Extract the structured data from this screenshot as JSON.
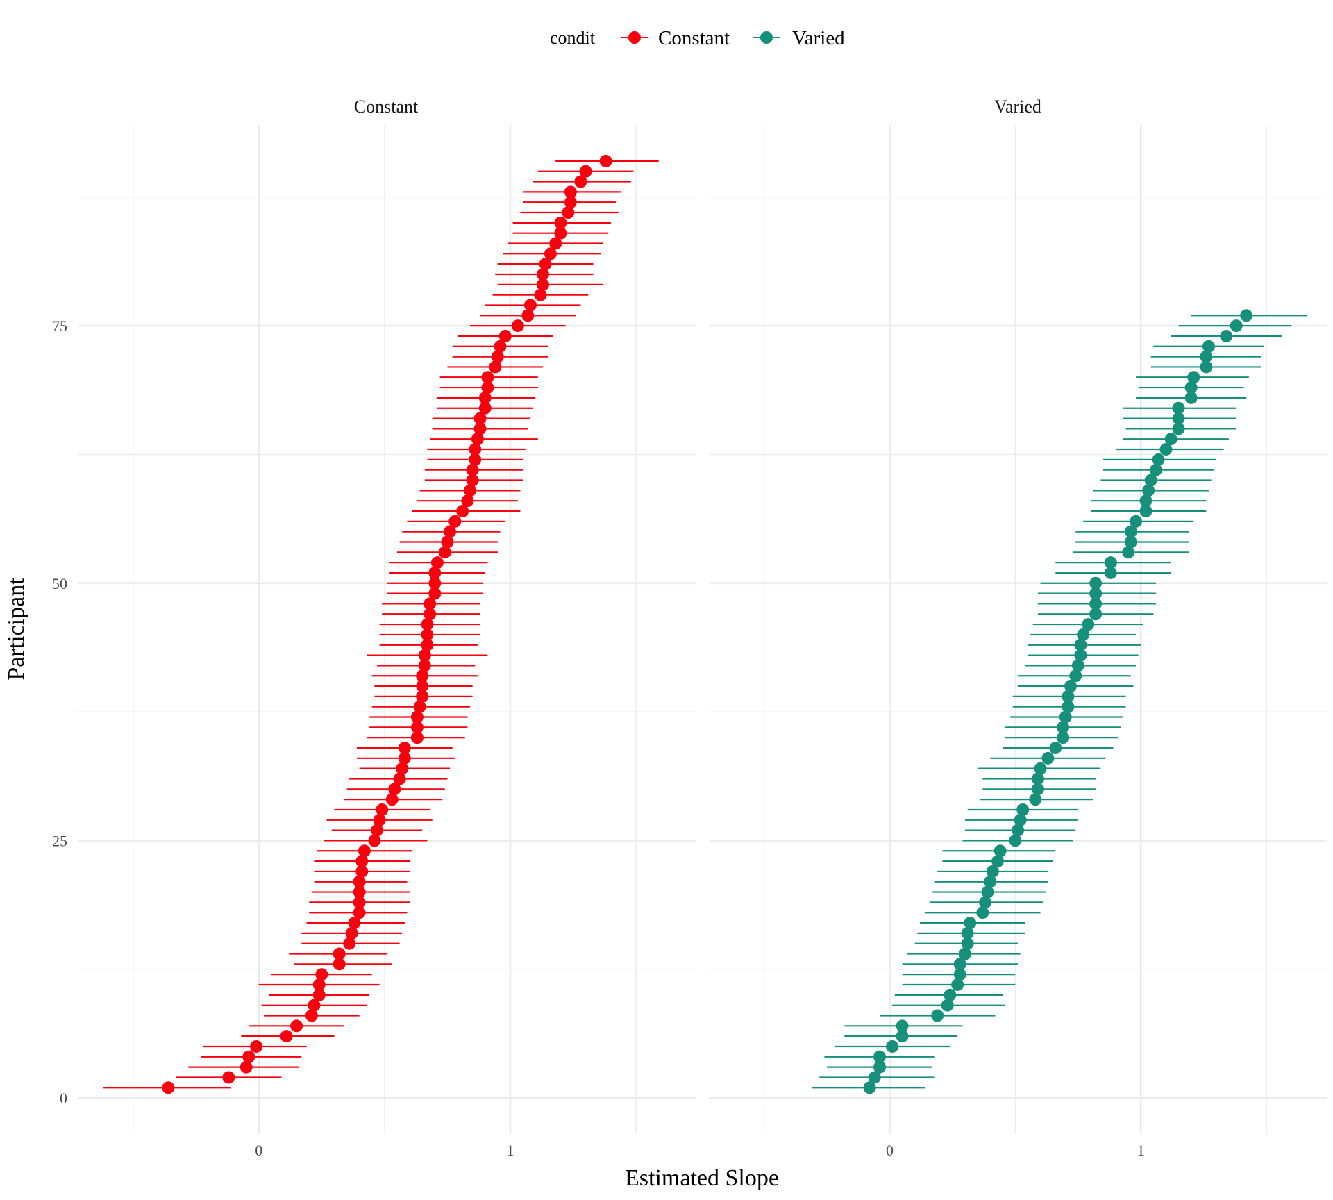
{
  "chart_data": {
    "type": "scatter",
    "title": "",
    "xlabel": "Estimated Slope",
    "ylabel": "Participant",
    "legend": {
      "title": "condit",
      "position": "top",
      "entries": [
        "Constant",
        "Varied"
      ]
    },
    "colors": {
      "Constant": "#f8000d",
      "Varied": "#16907a",
      "grid": "#ebebeb"
    },
    "xlim": [
      -0.72,
      1.74
    ],
    "ylim": [
      -3.5,
      94.5
    ],
    "x_ticks": [
      0,
      1
    ],
    "x_tick_labels": [
      "0",
      "1"
    ],
    "y_ticks": [
      0,
      25,
      50,
      75
    ],
    "y_tick_labels": [
      "0",
      "25",
      "50",
      "75"
    ],
    "grid": true,
    "panels": [
      {
        "name": "Constant",
        "series": [
          {
            "name": "Constant",
            "y": [
              1,
              2,
              3,
              4,
              5,
              6,
              7,
              8,
              9,
              10,
              11,
              12,
              13,
              14,
              15,
              16,
              17,
              18,
              19,
              20,
              21,
              22,
              23,
              24,
              25,
              26,
              27,
              28,
              29,
              30,
              31,
              32,
              33,
              34,
              35,
              36,
              37,
              38,
              39,
              40,
              41,
              42,
              43,
              44,
              45,
              46,
              47,
              48,
              49,
              50,
              51,
              52,
              53,
              54,
              55,
              56,
              57,
              58,
              59,
              60,
              61,
              62,
              63,
              64,
              65,
              66,
              67,
              68,
              69,
              70,
              71,
              72,
              73,
              74,
              75,
              76,
              77,
              78,
              79,
              80,
              81,
              82,
              83,
              84,
              85,
              86,
              87,
              88,
              89,
              90,
              91
            ],
            "x": [
              -0.36,
              -0.12,
              -0.05,
              -0.04,
              -0.01,
              0.11,
              0.15,
              0.21,
              0.22,
              0.24,
              0.24,
              0.25,
              0.32,
              0.32,
              0.36,
              0.37,
              0.38,
              0.4,
              0.4,
              0.4,
              0.4,
              0.41,
              0.41,
              0.42,
              0.46,
              0.47,
              0.48,
              0.49,
              0.53,
              0.54,
              0.56,
              0.57,
              0.58,
              0.58,
              0.63,
              0.63,
              0.63,
              0.64,
              0.65,
              0.65,
              0.65,
              0.66,
              0.66,
              0.67,
              0.67,
              0.67,
              0.68,
              0.68,
              0.7,
              0.7,
              0.7,
              0.71,
              0.74,
              0.75,
              0.76,
              0.78,
              0.81,
              0.83,
              0.84,
              0.85,
              0.85,
              0.86,
              0.86,
              0.87,
              0.88,
              0.88,
              0.9,
              0.9,
              0.91,
              0.91,
              0.94,
              0.95,
              0.96,
              0.98,
              1.03,
              1.07,
              1.08,
              1.12,
              1.13,
              1.13,
              1.14,
              1.16,
              1.18,
              1.2,
              1.2,
              1.23,
              1.24,
              1.24,
              1.28,
              1.3,
              1.38
            ],
            "lower": [
              -0.62,
              -0.33,
              -0.28,
              -0.23,
              -0.22,
              -0.07,
              -0.04,
              0.02,
              0.01,
              0.04,
              0.0,
              0.05,
              0.14,
              0.12,
              0.17,
              0.17,
              0.19,
              0.2,
              0.2,
              0.21,
              0.22,
              0.22,
              0.22,
              0.23,
              0.26,
              0.29,
              0.27,
              0.3,
              0.34,
              0.35,
              0.36,
              0.4,
              0.39,
              0.39,
              0.43,
              0.44,
              0.44,
              0.45,
              0.46,
              0.46,
              0.45,
              0.47,
              0.43,
              0.48,
              0.48,
              0.48,
              0.49,
              0.49,
              0.51,
              0.51,
              0.52,
              0.52,
              0.55,
              0.56,
              0.57,
              0.59,
              0.61,
              0.63,
              0.64,
              0.66,
              0.66,
              0.67,
              0.67,
              0.68,
              0.69,
              0.69,
              0.71,
              0.71,
              0.72,
              0.72,
              0.75,
              0.77,
              0.77,
              0.79,
              0.84,
              0.88,
              0.9,
              0.93,
              0.95,
              0.94,
              0.95,
              0.97,
              0.99,
              1.01,
              1.01,
              1.04,
              1.05,
              1.05,
              1.09,
              1.11,
              1.18
            ],
            "upper": [
              -0.11,
              0.09,
              0.16,
              0.17,
              0.19,
              0.3,
              0.34,
              0.4,
              0.43,
              0.44,
              0.48,
              0.45,
              0.53,
              0.51,
              0.56,
              0.57,
              0.58,
              0.59,
              0.6,
              0.6,
              0.59,
              0.6,
              0.6,
              0.61,
              0.67,
              0.65,
              0.69,
              0.68,
              0.73,
              0.74,
              0.75,
              0.76,
              0.78,
              0.77,
              0.82,
              0.83,
              0.83,
              0.84,
              0.85,
              0.85,
              0.87,
              0.86,
              0.91,
              0.87,
              0.88,
              0.88,
              0.88,
              0.88,
              0.89,
              0.89,
              0.9,
              0.91,
              0.95,
              0.95,
              0.96,
              0.98,
              1.04,
              1.03,
              1.04,
              1.05,
              1.05,
              1.05,
              1.06,
              1.11,
              1.07,
              1.08,
              1.09,
              1.1,
              1.11,
              1.11,
              1.13,
              1.15,
              1.15,
              1.17,
              1.22,
              1.26,
              1.28,
              1.31,
              1.37,
              1.33,
              1.33,
              1.36,
              1.37,
              1.39,
              1.4,
              1.43,
              1.42,
              1.44,
              1.48,
              1.49,
              1.59
            ]
          }
        ]
      },
      {
        "name": "Varied",
        "series": [
          {
            "name": "Varied",
            "y": [
              1,
              2,
              3,
              4,
              5,
              6,
              7,
              8,
              9,
              10,
              11,
              12,
              13,
              14,
              15,
              16,
              17,
              18,
              19,
              20,
              21,
              22,
              23,
              24,
              25,
              26,
              27,
              28,
              29,
              30,
              31,
              32,
              33,
              34,
              35,
              36,
              37,
              38,
              39,
              40,
              41,
              42,
              43,
              44,
              45,
              46,
              47,
              48,
              49,
              50,
              51,
              52,
              53,
              54,
              55,
              56,
              57,
              58,
              59,
              60,
              61,
              62,
              63,
              64,
              65,
              66,
              67,
              68,
              69,
              70,
              71,
              72,
              73,
              74,
              75,
              76
            ],
            "x": [
              -0.08,
              -0.06,
              -0.04,
              -0.04,
              0.01,
              0.05,
              0.05,
              0.19,
              0.23,
              0.24,
              0.27,
              0.28,
              0.28,
              0.3,
              0.31,
              0.31,
              0.32,
              0.37,
              0.38,
              0.39,
              0.4,
              0.41,
              0.43,
              0.44,
              0.5,
              0.51,
              0.52,
              0.53,
              0.58,
              0.59,
              0.59,
              0.6,
              0.63,
              0.66,
              0.69,
              0.69,
              0.7,
              0.71,
              0.71,
              0.72,
              0.74,
              0.75,
              0.76,
              0.76,
              0.77,
              0.79,
              0.82,
              0.82,
              0.82,
              0.82,
              0.88,
              0.88,
              0.95,
              0.96,
              0.96,
              0.98,
              1.02,
              1.02,
              1.03,
              1.04,
              1.06,
              1.07,
              1.1,
              1.12,
              1.15,
              1.15,
              1.15,
              1.2,
              1.2,
              1.21,
              1.26,
              1.26,
              1.27,
              1.34,
              1.38,
              1.42
            ],
            "lower": [
              -0.31,
              -0.28,
              -0.25,
              -0.26,
              -0.22,
              -0.18,
              -0.18,
              -0.04,
              0.01,
              0.02,
              0.05,
              0.05,
              0.05,
              0.07,
              0.1,
              0.11,
              0.12,
              0.14,
              0.16,
              0.17,
              0.18,
              0.19,
              0.21,
              0.21,
              0.29,
              0.3,
              0.3,
              0.31,
              0.36,
              0.37,
              0.37,
              0.35,
              0.4,
              0.45,
              0.46,
              0.46,
              0.48,
              0.49,
              0.49,
              0.51,
              0.51,
              0.54,
              0.55,
              0.55,
              0.56,
              0.57,
              0.59,
              0.59,
              0.59,
              0.6,
              0.66,
              0.66,
              0.73,
              0.74,
              0.74,
              0.77,
              0.8,
              0.8,
              0.81,
              0.84,
              0.85,
              0.85,
              0.9,
              0.93,
              0.94,
              0.93,
              0.93,
              0.98,
              0.99,
              0.98,
              1.04,
              1.04,
              1.05,
              1.12,
              1.15,
              1.2
            ],
            "upper": [
              0.14,
              0.18,
              0.17,
              0.18,
              0.24,
              0.27,
              0.29,
              0.42,
              0.46,
              0.45,
              0.5,
              0.5,
              0.51,
              0.52,
              0.51,
              0.54,
              0.54,
              0.6,
              0.61,
              0.62,
              0.63,
              0.63,
              0.65,
              0.66,
              0.73,
              0.74,
              0.75,
              0.75,
              0.81,
              0.82,
              0.82,
              0.84,
              0.86,
              0.89,
              0.91,
              0.92,
              0.93,
              0.94,
              0.94,
              0.97,
              0.96,
              0.98,
              0.99,
              1.0,
              0.98,
              1.01,
              1.05,
              1.06,
              1.06,
              1.06,
              1.12,
              1.12,
              1.19,
              1.19,
              1.19,
              1.21,
              1.26,
              1.26,
              1.27,
              1.28,
              1.29,
              1.3,
              1.33,
              1.35,
              1.38,
              1.38,
              1.38,
              1.42,
              1.41,
              1.43,
              1.48,
              1.48,
              1.49,
              1.56,
              1.6,
              1.66
            ]
          }
        ]
      }
    ]
  }
}
